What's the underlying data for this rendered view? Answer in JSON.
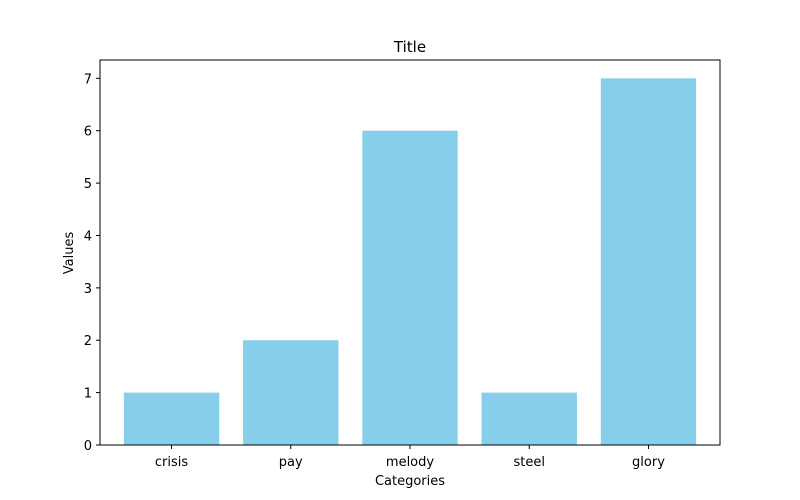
{
  "chart_data": {
    "type": "bar",
    "title": "Title",
    "xlabel": "Categories",
    "ylabel": "Values",
    "categories": [
      "crisis",
      "pay",
      "melody",
      "steel",
      "glory"
    ],
    "values": [
      1,
      2,
      6,
      1,
      7
    ],
    "ylim": [
      0,
      7.35
    ],
    "yticks": [
      0,
      1,
      2,
      3,
      4,
      5,
      6,
      7
    ],
    "grid": false,
    "bar_color": "#87ceeb"
  }
}
